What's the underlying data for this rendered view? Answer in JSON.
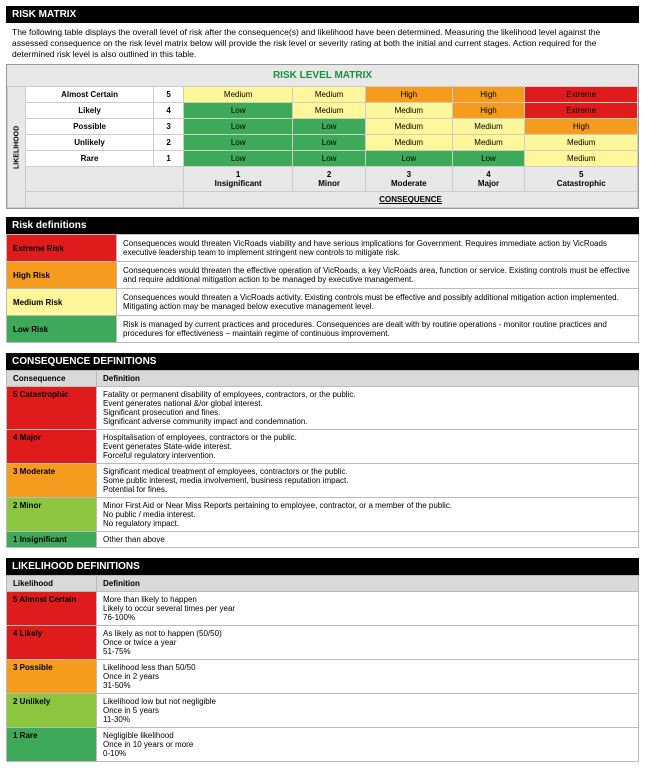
{
  "header1": "RISK MATRIX",
  "intro": "The following table displays the overall level of risk after the consequence(s) and likelihood have been determined. Measuring the likelihood level against the assessed consequence on the risk level matrix below will provide the risk level or severity rating at both the initial and current stages. Action required for the determined risk level is also outlined in this table.",
  "matrix": {
    "title": "RISK LEVEL MATRIX",
    "likelihood_axis": "LIKELIHOOD",
    "consequence_axis": "CONSEQUENCE",
    "rows": [
      {
        "label": "Almost Certain",
        "num": "5",
        "cells": [
          "Medium",
          "Medium",
          "High",
          "High",
          "Extreme"
        ],
        "classes": [
          "c-med",
          "c-med",
          "c-high",
          "c-high",
          "c-ext"
        ]
      },
      {
        "label": "Likely",
        "num": "4",
        "cells": [
          "Low",
          "Medium",
          "Medium",
          "High",
          "Extreme"
        ],
        "classes": [
          "c-low",
          "c-med",
          "c-med",
          "c-high",
          "c-ext"
        ]
      },
      {
        "label": "Possible",
        "num": "3",
        "cells": [
          "Low",
          "Low",
          "Medium",
          "Medium",
          "High"
        ],
        "classes": [
          "c-low",
          "c-low",
          "c-med",
          "c-med",
          "c-high"
        ]
      },
      {
        "label": "Unlikely",
        "num": "2",
        "cells": [
          "Low",
          "Low",
          "Medium",
          "Medium",
          "Medium"
        ],
        "classes": [
          "c-low",
          "c-low",
          "c-med",
          "c-med",
          "c-med"
        ]
      },
      {
        "label": "Rare",
        "num": "1",
        "cells": [
          "Low",
          "Low",
          "Low",
          "Low",
          "Medium"
        ],
        "classes": [
          "c-low",
          "c-low",
          "c-low",
          "c-low",
          "c-med"
        ]
      }
    ],
    "col_nums": [
      "1",
      "2",
      "3",
      "4",
      "5"
    ],
    "col_labels": [
      "Insignificant",
      "Minor",
      "Moderate",
      "Major",
      "Catastrophic"
    ]
  },
  "riskdefs": {
    "title": "Risk definitions",
    "rows": [
      {
        "label": "Extreme Risk",
        "cls": "ext",
        "text": "Consequences would threaten VicRoads viability and have serious implications for Government. Requires immediate action by VicRoads executive leadership team to implement stringent new controls to mitigate risk."
      },
      {
        "label": "High Risk",
        "cls": "high",
        "text": "Consequences would threaten the effective operation of VicRoads, a key VicRoads area, function or service. Existing controls must be effective and require additional mitigation action to be managed by executive management."
      },
      {
        "label": "Medium Risk",
        "cls": "med",
        "text": "Consequences would threaten a VicRoads activity. Existing controls must be effective and possibly additional mitigation action implemented. Mitigating action may be managed below executive management level."
      },
      {
        "label": "Low Risk",
        "cls": "low",
        "text": "Risk is managed by current practices and procedures. Consequences are dealt with by routine operations - monitor routine practices and procedures for effectiveness – maintain regime of continuous improvement."
      }
    ]
  },
  "cdefs": {
    "title": "CONSEQUENCE DEFINITIONS",
    "head_a": "Consequence",
    "head_b": "Definition",
    "rows": [
      {
        "label": "5 Catastrophic",
        "cls": "cd5",
        "lines": [
          "Fatality or permanent disability of employees, contractors, or the public.",
          "Event generates national &/or global interest.",
          "Significant prosecution and fines.",
          "Significant adverse community impact and condemnation."
        ]
      },
      {
        "label": "4 Major",
        "cls": "cd4",
        "lines": [
          "Hospitalisation of employees, contractors or the public.",
          "Event generates State-wide interest.",
          "Forceful regulatory intervention."
        ]
      },
      {
        "label": "3 Moderate",
        "cls": "cd3",
        "lines": [
          "Significant medical treatment of employees, contractors or the public.",
          "Some public interest, media involvement, business reputation impact.",
          "Potential for fines."
        ]
      },
      {
        "label": "2 Minor",
        "cls": "cd2",
        "lines": [
          "Minor First Aid or Near Miss Reports pertaining to employee, contractor, or a member of the public.",
          "No public / media interest.",
          "No regulatory impact."
        ]
      },
      {
        "label": "1 Insignificant",
        "cls": "cd1",
        "lines": [
          "Other than above"
        ]
      }
    ]
  },
  "ldefs": {
    "title": "LIKELIHOOD DEFINITIONS",
    "head_a": "Likelihood",
    "head_b": "Definition",
    "rows": [
      {
        "label": "5 Almost Certain",
        "cls": "ld5",
        "lines": [
          "More than likely to happen",
          "Likely to occur several times per year",
          "76-100%"
        ]
      },
      {
        "label": "4 Likely",
        "cls": "ld4",
        "lines": [
          "As likely as not to happen (50/50)",
          "Once or twice a year",
          "51-75%"
        ]
      },
      {
        "label": "3 Possible",
        "cls": "ld3",
        "lines": [
          "Likelihood less than 50/50",
          "Once in 2 years",
          "31-50%"
        ]
      },
      {
        "label": "2 Unlikely",
        "cls": "ld2",
        "lines": [
          "Likelihood low but not negligible",
          "Once in 5 years",
          "11-30%"
        ]
      },
      {
        "label": "1 Rare",
        "cls": "ld1",
        "lines": [
          "Negligible likelihood",
          "Once in 10 years or more",
          "0-10%"
        ]
      }
    ]
  }
}
